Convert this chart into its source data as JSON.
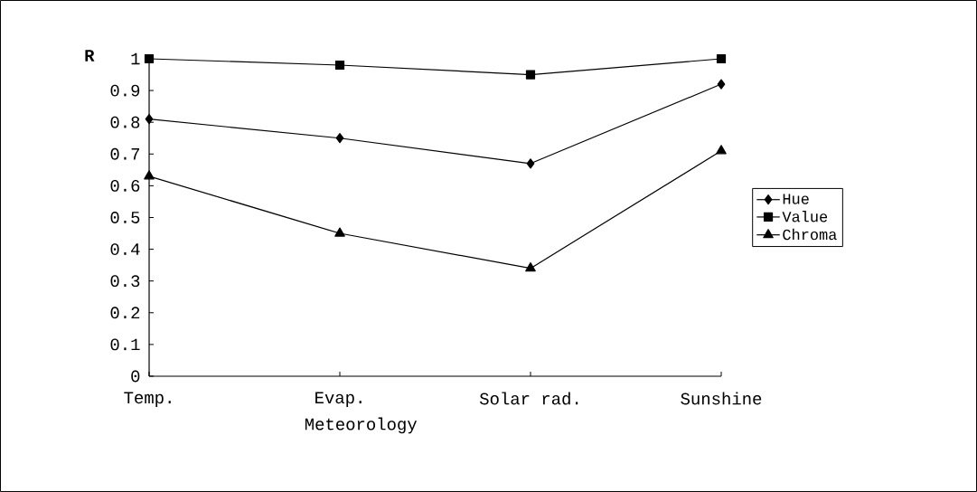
{
  "chart_data": {
    "type": "line",
    "categories": [
      "Temp.",
      "Evap.",
      "Solar rad.",
      "Sunshine"
    ],
    "xlabel": "Meteorology",
    "ylabel": "R",
    "ylim": [
      0,
      1
    ],
    "yticks": [
      0,
      0.1,
      0.2,
      0.3,
      0.4,
      0.5,
      0.6,
      0.7,
      0.8,
      0.9,
      1
    ],
    "legend": "right",
    "series": [
      {
        "name": "Hue",
        "color": "#000000",
        "marker": "diamond",
        "values": [
          0.81,
          0.75,
          0.67,
          0.92
        ]
      },
      {
        "name": "Value",
        "color": "#000000",
        "marker": "square",
        "values": [
          1.0,
          0.98,
          0.95,
          1.0
        ]
      },
      {
        "name": "Chroma",
        "color": "#000000",
        "marker": "triangle",
        "values": [
          0.63,
          0.45,
          0.34,
          0.71
        ]
      }
    ]
  }
}
